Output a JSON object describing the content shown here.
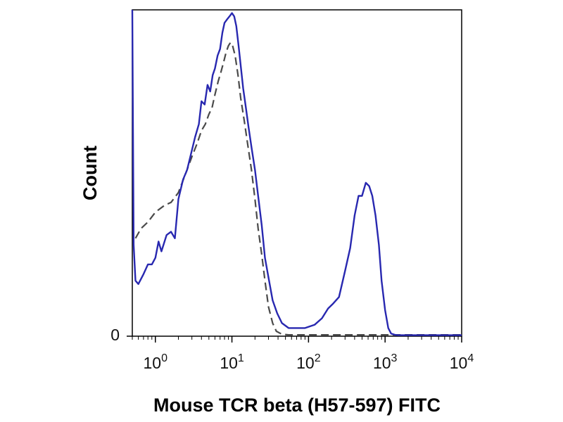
{
  "chart_data": {
    "type": "line",
    "title": "",
    "xlabel": "Mouse TCR beta (H57-597) FITC",
    "ylabel": "Count",
    "xscale": "log",
    "xlim": [
      0.5,
      10000
    ],
    "ylim": [
      0,
      100
    ],
    "x_ticks": [
      {
        "base": "10",
        "exp": "0",
        "value": 1
      },
      {
        "base": "10",
        "exp": "1",
        "value": 10
      },
      {
        "base": "10",
        "exp": "2",
        "value": 100
      },
      {
        "base": "10",
        "exp": "3",
        "value": 1000
      },
      {
        "base": "10",
        "exp": "4",
        "value": 10000
      }
    ],
    "y_ticks": [
      {
        "label": "0",
        "value": 0
      }
    ],
    "grid": false,
    "legend": "none",
    "series": [
      {
        "style": "solid",
        "color": "#2828b0",
        "x": [
          0.5,
          0.52,
          0.55,
          0.6,
          0.7,
          0.8,
          0.9,
          1.0,
          1.1,
          1.2,
          1.4,
          1.6,
          1.8,
          2.0,
          2.3,
          2.6,
          3.0,
          3.3,
          3.7,
          4.0,
          4.4,
          4.8,
          5.2,
          5.6,
          6.0,
          6.5,
          7.0,
          7.5,
          8.0,
          8.6,
          9.3,
          10.0,
          10.7,
          11.4,
          12.2,
          13.0,
          14.0,
          15.2,
          16.5,
          18.0,
          20.0,
          22.0,
          24.5,
          27.0,
          30.0,
          34.0,
          39.0,
          45.0,
          55.0,
          70.0,
          90.0,
          120.0,
          150.0,
          180.0,
          210.0,
          250.0,
          300.0,
          350.0,
          400.0,
          450.0,
          500.0,
          560.0,
          620.0,
          680.0,
          750.0,
          830.0,
          900.0,
          1000.0,
          1100.0,
          1200.0,
          1350.0,
          1500.0,
          2000.0,
          3000.0,
          5000.0,
          10000.0
        ],
        "y": [
          100,
          28,
          17,
          16,
          19,
          22,
          22,
          24,
          29,
          26,
          31,
          32,
          30,
          42,
          48,
          51,
          57,
          61,
          65,
          72,
          71,
          77,
          75,
          80,
          82,
          86,
          88,
          93,
          96,
          97,
          98,
          99,
          98,
          95,
          89,
          83,
          76,
          70,
          64,
          58,
          51,
          43,
          34,
          24,
          18,
          11,
          7,
          4,
          2.5,
          2.5,
          2.5,
          3.5,
          5.5,
          8.5,
          10,
          12,
          20,
          27,
          37,
          43,
          43,
          47,
          46,
          43,
          37,
          28,
          17,
          8,
          2.5,
          0.8,
          0.4,
          0.3,
          0.3,
          0.3,
          0.3,
          0.3
        ]
      },
      {
        "style": "dashed",
        "color": "#4a4a4a",
        "x": [
          0.55,
          0.65,
          0.8,
          1.0,
          1.3,
          1.6,
          2.0,
          2.5,
          3.0,
          3.5,
          4.0,
          4.5,
          5.0,
          5.5,
          6.0,
          6.6,
          7.2,
          7.8,
          8.4,
          9.0,
          9.6,
          10.2,
          11.0,
          12.0,
          13.0,
          14.5,
          16.0,
          18.0,
          20.0,
          22.0,
          24.5,
          27.0,
          30.0,
          34.0,
          38.0,
          45.0,
          55.0,
          70.0,
          100.0,
          300.0,
          1000.0,
          10000.0
        ],
        "y": [
          30,
          33,
          35,
          38,
          40,
          41,
          44,
          50,
          55,
          59,
          63,
          65,
          68,
          70,
          74,
          78,
          81,
          84,
          87,
          89,
          90,
          89,
          86,
          80,
          73,
          66,
          59,
          51,
          42,
          33,
          25,
          17,
          9,
          4,
          1.5,
          0.6,
          0.4,
          0.4,
          0.4,
          0.4,
          0.4,
          0.4
        ]
      }
    ]
  }
}
